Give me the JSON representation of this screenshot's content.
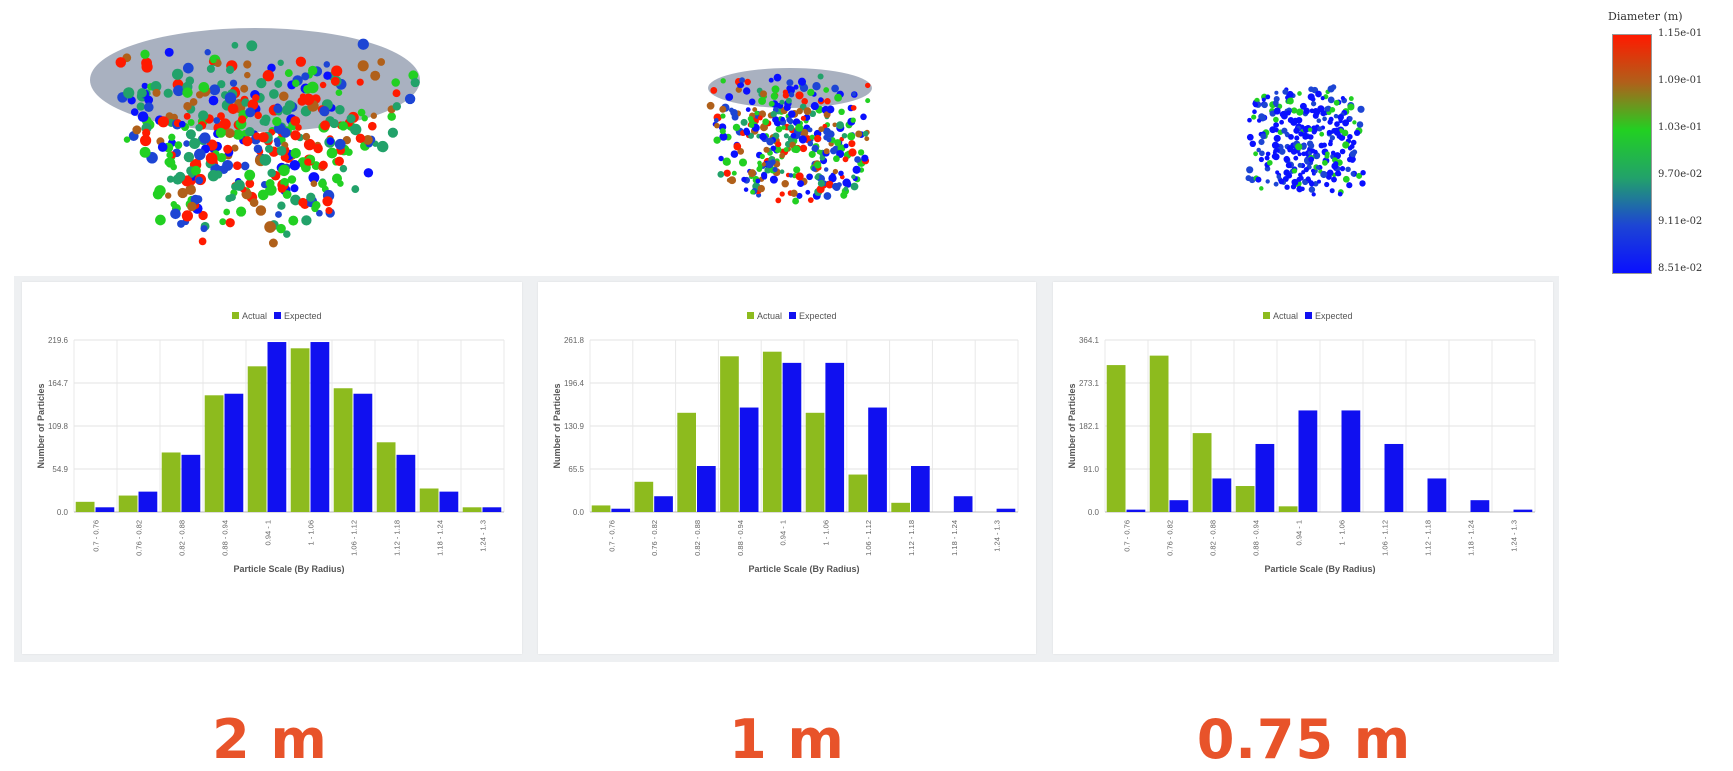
{
  "colorbar": {
    "title": "Diameter (m)",
    "ticks": [
      "1.15e-01",
      "1.09e-01",
      "1.03e-01",
      "9.70e-02",
      "9.11e-02",
      "8.51e-02"
    ],
    "colors": [
      "#ff1a00",
      "#b0601a",
      "#22d022",
      "#22a26a",
      "#1d45d4",
      "#0a10ff"
    ]
  },
  "scale_labels": [
    "2 m",
    "1 m",
    "0.75 m"
  ],
  "colors": {
    "actual": "#8dbb1e",
    "expected": "#1010f0",
    "accent": "#e8532a"
  },
  "chart_data": [
    {
      "type": "bar",
      "legend": [
        "Actual",
        "Expected"
      ],
      "categories": [
        "0.7 - 0.76",
        "0.76 - 0.82",
        "0.82 - 0.88",
        "0.88 - 0.94",
        "0.94 - 1",
        "1 - 1.06",
        "1.06 - 1.12",
        "1.12 - 1.18",
        "1.18 - 1.24",
        "1.24 - 1.3"
      ],
      "series": [
        {
          "name": "Actual",
          "values": [
            13,
            21,
            76,
            149,
            186,
            209,
            158,
            89,
            30,
            6
          ]
        },
        {
          "name": "Expected",
          "values": [
            6,
            26,
            73,
            151,
            217,
            217,
            151,
            73,
            26,
            6
          ]
        }
      ],
      "ticks": [
        "0.0",
        "54.9",
        "109.8",
        "164.7",
        "219.6"
      ],
      "ylim": [
        0,
        219.6
      ],
      "xlabel": "Particle Scale (By Radius)",
      "ylabel": "Number of Particles",
      "grid": true,
      "legend_position": "top-center"
    },
    {
      "type": "bar",
      "legend": [
        "Actual",
        "Expected"
      ],
      "categories": [
        "0.7 - 0.76",
        "0.76 - 0.82",
        "0.82 - 0.88",
        "0.88 - 0.94",
        "0.94 - 1",
        "1 - 1.06",
        "1.06 - 1.12",
        "1.12 - 1.18",
        "1.18 - 1.24",
        "1.24 - 1.3"
      ],
      "series": [
        {
          "name": "Actual",
          "values": [
            10,
            46,
            151,
            237,
            244,
            151,
            57,
            14,
            0,
            0
          ]
        },
        {
          "name": "Expected",
          "values": [
            5,
            24,
            70,
            159,
            227,
            227,
            159,
            70,
            24,
            5
          ]
        }
      ],
      "ticks": [
        "0.0",
        "65.5",
        "130.9",
        "196.4",
        "261.8"
      ],
      "ylim": [
        0,
        261.8
      ],
      "xlabel": "Particle Scale (By Radius)",
      "ylabel": "Number of Particles",
      "grid": true,
      "legend_position": "top-center"
    },
    {
      "type": "bar",
      "legend": [
        "Actual",
        "Expected"
      ],
      "categories": [
        "0.7 - 0.76",
        "0.76 - 0.82",
        "0.82 - 0.88",
        "0.88 - 0.94",
        "0.94 - 1",
        "1 - 1.06",
        "1.06 - 1.12",
        "1.12 - 1.18",
        "1.18 - 1.24",
        "1.24 - 1.3"
      ],
      "series": [
        {
          "name": "Actual",
          "values": [
            311,
            331,
            167,
            55,
            12,
            0,
            0,
            0,
            0,
            0
          ]
        },
        {
          "name": "Expected",
          "values": [
            5,
            25,
            71,
            144,
            215,
            215,
            144,
            71,
            25,
            5
          ]
        }
      ],
      "ticks": [
        "0.0",
        "91.0",
        "182.1",
        "273.1",
        "364.1"
      ],
      "ylim": [
        0,
        364.1
      ],
      "xlabel": "Particle Scale (By Radius)",
      "ylabel": "Number of Particles",
      "grid": true,
      "legend_position": "top-center"
    }
  ]
}
